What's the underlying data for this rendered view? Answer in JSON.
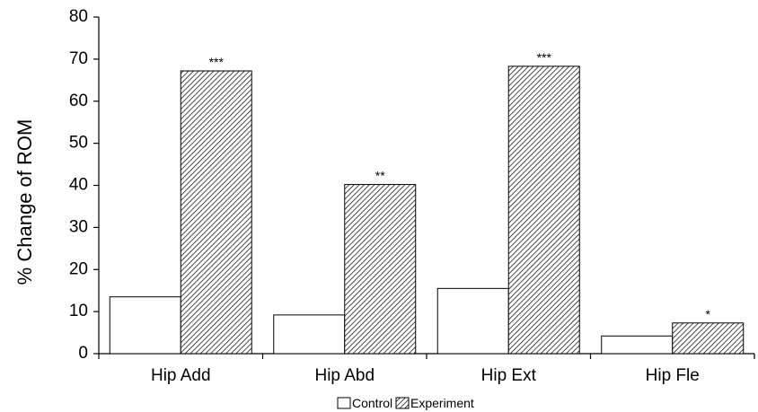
{
  "chart_data": {
    "type": "bar",
    "title": "",
    "xlabel": "",
    "ylabel": "% Change of ROM",
    "ylim": [
      0,
      80
    ],
    "yticks": [
      0,
      10,
      20,
      30,
      40,
      50,
      60,
      70,
      80
    ],
    "categories": [
      "Hip Add",
      "Hip Abd",
      "Hip Ext",
      "Hip Fle"
    ],
    "series": [
      {
        "name": "Control",
        "values": [
          13.5,
          9.2,
          15.5,
          4.2
        ],
        "fill": "#ffffff",
        "pattern": "none"
      },
      {
        "name": "Experiment",
        "values": [
          67.2,
          40.2,
          68.3,
          7.3
        ],
        "fill": "#ffffff",
        "pattern": "diagonal-hatch"
      }
    ],
    "annotations": [
      "***",
      "**",
      "***",
      "*"
    ],
    "legend": {
      "placement": "bottom-center",
      "entries": [
        "Control",
        "Experiment"
      ]
    },
    "grid": false,
    "colors": {
      "axis": "#000000",
      "bar_outline": "#000000",
      "hatch": "#000000"
    }
  }
}
